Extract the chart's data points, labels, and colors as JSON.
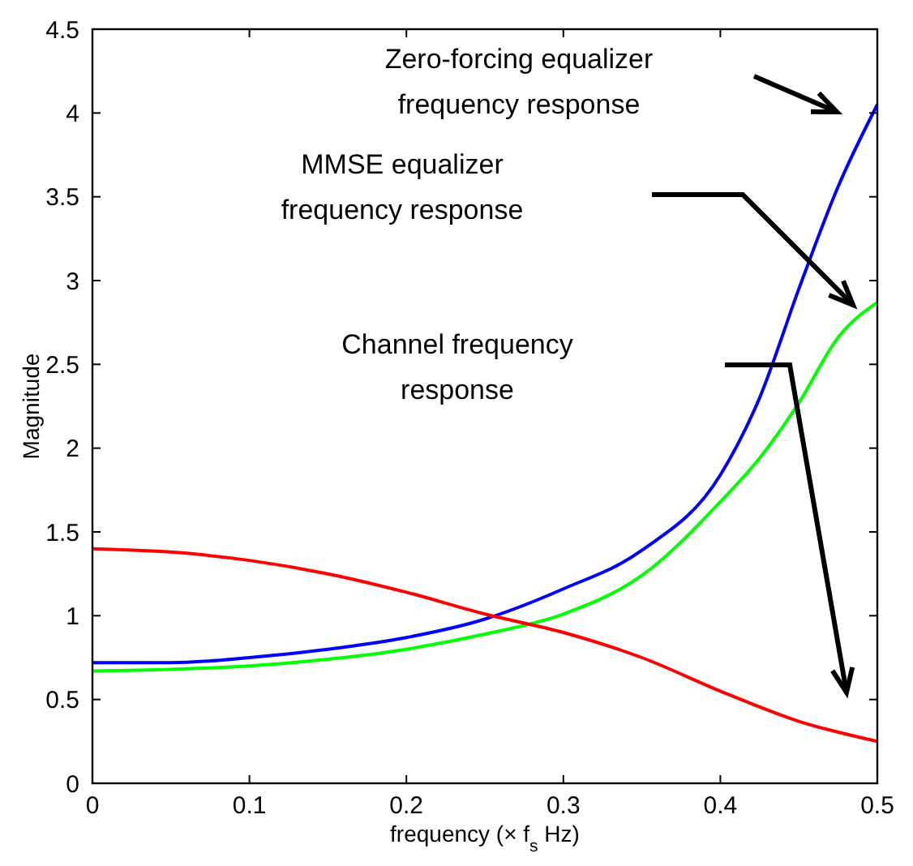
{
  "chart_data": {
    "type": "line",
    "xlabel": "frequency (× f$_{s}$ Hz)",
    "ylabel": "Magnitude",
    "xlim": [
      0,
      0.5
    ],
    "xticks": [
      0,
      0.1,
      0.2,
      0.3,
      0.4,
      0.5
    ],
    "ylim": [
      0,
      4.5
    ],
    "yticks": [
      0,
      0.5,
      1,
      1.5,
      2,
      2.5,
      3,
      3.5,
      4,
      4.5
    ],
    "grid": false,
    "marker": "none",
    "line_style": "solid",
    "series": [
      {
        "color": "#0000ff",
        "x": [
          0,
          0.05,
          0.1,
          0.15,
          0.2,
          0.25,
          0.3,
          0.35,
          0.4,
          0.425,
          0.45,
          0.475,
          0.5
        ],
        "values": [
          0.72,
          0.72,
          0.75,
          0.8,
          0.87,
          0.98,
          1.16,
          1.39,
          1.84,
          2.3,
          2.95,
          3.56,
          4.05
        ]
      },
      {
        "color": "#00ff00",
        "x": [
          0,
          0.05,
          0.1,
          0.15,
          0.2,
          0.25,
          0.3,
          0.35,
          0.4,
          0.425,
          0.45,
          0.475,
          0.5
        ],
        "values": [
          0.67,
          0.68,
          0.7,
          0.74,
          0.8,
          0.89,
          1.01,
          1.24,
          1.68,
          1.94,
          2.27,
          2.66,
          2.87
        ]
      },
      {
        "color": "#ff0000",
        "x": [
          0,
          0.05,
          0.1,
          0.15,
          0.2,
          0.25,
          0.3,
          0.35,
          0.4,
          0.45,
          0.5
        ],
        "values": [
          1.4,
          1.38,
          1.33,
          1.25,
          1.14,
          1.01,
          0.9,
          0.75,
          0.55,
          0.37,
          0.25
        ]
      }
    ],
    "annotations": [
      "Zero-forcing equalizer\nfrequency response",
      "MMSE equalizer\nfrequency response",
      "Channel frequency\nresponse"
    ]
  }
}
